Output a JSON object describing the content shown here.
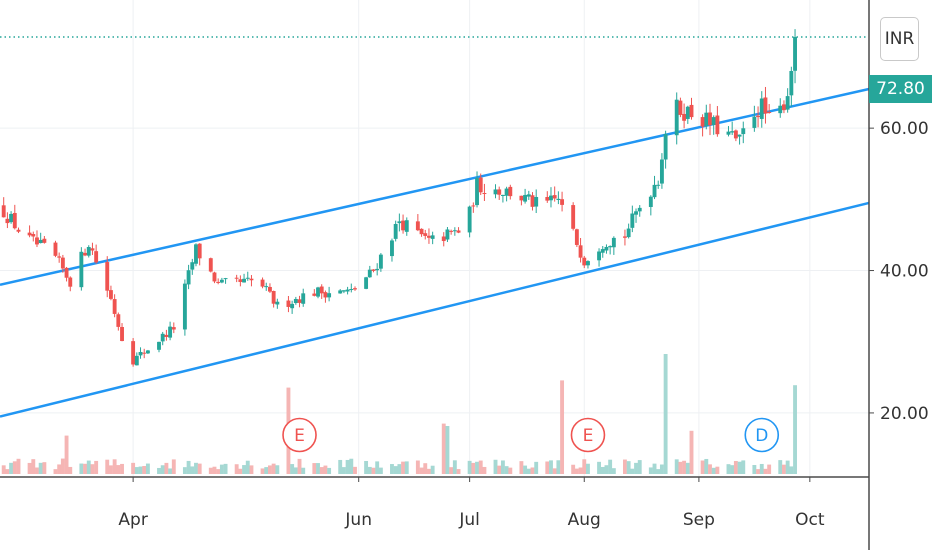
{
  "chart_data": {
    "type": "candlestick",
    "currency": "INR",
    "last_price": "72.80",
    "y_ticks": [
      "20.00",
      "40.00",
      "60.00"
    ],
    "y_tick_values": [
      20,
      40,
      60
    ],
    "ylim": [
      11,
      78
    ],
    "x_ticks": [
      "Apr",
      "Jun",
      "Jul",
      "Aug",
      "Sep",
      "Oct"
    ],
    "x_tick_dates": [
      "2019-04-01",
      "2019-06-01",
      "2019-07-01",
      "2019-08-01",
      "2019-09-01",
      "2019-10-01"
    ],
    "x_start_date": "2019-02-24",
    "x_end_date": "2019-10-17",
    "grid": true,
    "colors": {
      "up": "#26a69a",
      "down": "#ef5350",
      "channel": "#2196f3",
      "volume_up": "#a5d8d3",
      "volume_down": "#f5b5b4",
      "event_earnings": "#ef5350",
      "event_dividend": "#2196f3",
      "last_price_bg": "#26a69a"
    },
    "channel": {
      "upper": [
        {
          "date": "2019-02-24",
          "value": 38.0
        },
        {
          "date": "2019-10-17",
          "value": 65.5
        }
      ],
      "lower": [
        {
          "date": "2019-02-24",
          "value": 19.5
        },
        {
          "date": "2019-10-17",
          "value": 49.5
        }
      ]
    },
    "events": [
      {
        "label": "E",
        "date": "2019-05-16",
        "kind": "earnings"
      },
      {
        "label": "E",
        "date": "2019-08-02",
        "kind": "earnings"
      },
      {
        "label": "D",
        "date": "2019-09-18",
        "kind": "dividend"
      }
    ],
    "anchors": [
      {
        "date": "2019-02-24",
        "close": 49
      },
      {
        "date": "2019-03-03",
        "close": 44.5
      },
      {
        "date": "2019-03-10",
        "close": 42.5
      },
      {
        "date": "2019-03-15",
        "close": 38.5
      },
      {
        "date": "2019-03-20",
        "close": 44
      },
      {
        "date": "2019-03-26",
        "close": 36
      },
      {
        "date": "2019-03-31",
        "close": 27
      },
      {
        "date": "2019-04-05",
        "close": 29
      },
      {
        "date": "2019-04-12",
        "close": 32
      },
      {
        "date": "2019-04-18",
        "close": 43
      },
      {
        "date": "2019-04-24",
        "close": 38
      },
      {
        "date": "2019-05-05",
        "close": 38.5
      },
      {
        "date": "2019-05-10",
        "close": 35
      },
      {
        "date": "2019-05-20",
        "close": 37
      },
      {
        "date": "2019-05-30",
        "close": 37
      },
      {
        "date": "2019-06-05",
        "close": 40
      },
      {
        "date": "2019-06-12",
        "close": 47
      },
      {
        "date": "2019-06-20",
        "close": 44
      },
      {
        "date": "2019-06-30",
        "close": 46
      },
      {
        "date": "2019-07-03",
        "close": 52
      },
      {
        "date": "2019-07-12",
        "close": 51
      },
      {
        "date": "2019-07-20",
        "close": 49
      },
      {
        "date": "2019-07-25",
        "close": 50
      },
      {
        "date": "2019-08-01",
        "close": 41.5
      },
      {
        "date": "2019-08-06",
        "close": 44
      },
      {
        "date": "2019-08-12",
        "close": 45
      },
      {
        "date": "2019-08-16",
        "close": 49
      },
      {
        "date": "2019-08-21",
        "close": 53
      },
      {
        "date": "2019-08-24",
        "close": 63
      },
      {
        "date": "2019-08-31",
        "close": 62
      },
      {
        "date": "2019-09-03",
        "close": 61
      },
      {
        "date": "2019-09-06",
        "close": 60
      },
      {
        "date": "2019-09-09",
        "close": 59
      },
      {
        "date": "2019-09-12",
        "close": 58
      },
      {
        "date": "2019-09-15",
        "close": 62
      },
      {
        "date": "2019-09-18",
        "close": 63
      },
      {
        "date": "2019-09-21",
        "close": 60
      },
      {
        "date": "2019-09-25",
        "close": 65
      },
      {
        "date": "2019-09-27",
        "close": 72.8
      }
    ],
    "volume_spikes": [
      {
        "date": "2019-05-12",
        "value": 0.9
      },
      {
        "date": "2019-05-13",
        "value": 0.72
      },
      {
        "date": "2019-06-24",
        "value": 0.42
      },
      {
        "date": "2019-06-25",
        "value": 0.4
      },
      {
        "date": "2019-07-26",
        "value": 0.78
      },
      {
        "date": "2019-07-27",
        "value": 0.93
      },
      {
        "date": "2019-08-23",
        "value": 1.0
      },
      {
        "date": "2019-08-24",
        "value": 0.6
      },
      {
        "date": "2019-08-30",
        "value": 0.36
      },
      {
        "date": "2019-09-27",
        "value": 0.74
      },
      {
        "date": "2019-03-14",
        "value": 0.32
      },
      {
        "date": "2019-04-21",
        "value": 0.25
      }
    ]
  }
}
